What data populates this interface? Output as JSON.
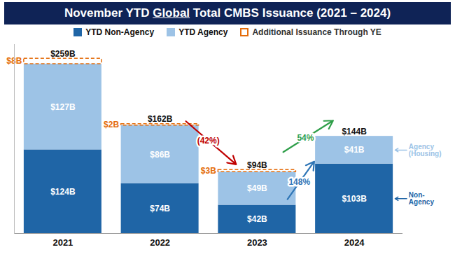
{
  "chart_data": {
    "type": "bar",
    "title": "November YTD Global Total CMBS Issuance (2021 – 2024)",
    "categories": [
      "2021",
      "2022",
      "2023",
      "2024"
    ],
    "series": [
      {
        "name": "YTD Non-Agency",
        "color": "#1f65a6",
        "values": [
          124,
          74,
          42,
          103
        ],
        "value_labels": [
          "$124B",
          "$74B",
          "$42B",
          "$103B"
        ],
        "side_label": "Non-Agency",
        "changes": [
          {
            "from": "2023",
            "to": "2024",
            "value": 148,
            "label": "148%",
            "color": "#2e75b6"
          }
        ]
      },
      {
        "name": "YTD Agency",
        "color": "#9dc3e6",
        "values": [
          127,
          86,
          49,
          41
        ],
        "value_labels": [
          "$127B",
          "$86B",
          "$49B",
          "$41B"
        ],
        "side_label": "Agency (Housing)"
      },
      {
        "name": "Additional Issuance Through YE",
        "color": "#e46c0a",
        "line_style": "dashed",
        "values": [
          8,
          2,
          3,
          null
        ],
        "value_labels": [
          "$8B",
          "$2B",
          "$3B",
          null
        ]
      }
    ],
    "totals": [
      259,
      162,
      94,
      144
    ],
    "total_labels": [
      "$259B",
      "$162B",
      "$94B",
      "$144B"
    ],
    "total_changes": [
      {
        "from": "2022",
        "to": "2023",
        "value": -42,
        "label": "(42%)",
        "color": "#c00000"
      },
      {
        "from": "2023",
        "to": "2024",
        "value": 54,
        "label": "54%",
        "color": "#2e9e48"
      }
    ],
    "ylim": [
      0,
      280
    ],
    "yticks": [],
    "tick_labels": "x",
    "stacked": true,
    "data_labels": true,
    "legend": "top",
    "grid": false
  }
}
